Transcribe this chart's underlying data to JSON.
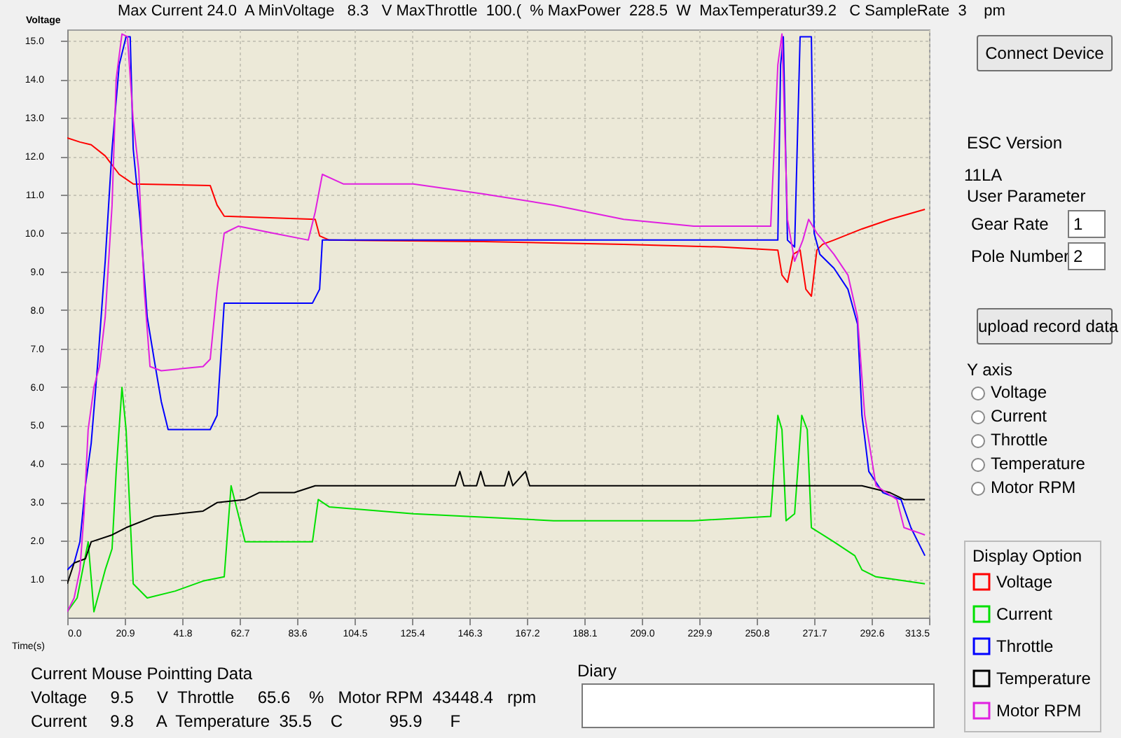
{
  "chart_data": {
    "type": "line",
    "xlabel": "Time(s)",
    "ylabel": "Voltage",
    "legend_title": "Display Option",
    "legend": "right",
    "grid": true,
    "marker": "none",
    "line_style": "solid",
    "xlim": [
      0,
      313.5
    ],
    "xticks": [
      {
        "value": 0,
        "label": "0.0"
      },
      20.9,
      41.8,
      62.7,
      83.6,
      104.5,
      125.4,
      146.3,
      167.2,
      188.1,
      {
        "value": 209,
        "label": "209.0"
      },
      229.9,
      250.8,
      271.7,
      292.6,
      313.5
    ],
    "ylim": [
      0,
      15.3
    ],
    "yticks": [
      {
        "value": 1,
        "label": "1.0"
      },
      {
        "value": 2,
        "label": "2.0"
      },
      {
        "value": 3,
        "label": "3.0"
      },
      {
        "value": 4,
        "label": "4.0"
      },
      {
        "value": 5,
        "label": "5.0"
      },
      {
        "value": 6,
        "label": "6.0"
      },
      {
        "value": 7,
        "label": "7.0"
      },
      {
        "value": 8,
        "label": "8.0"
      },
      {
        "value": 9,
        "label": "9.0"
      },
      {
        "value": 10,
        "label": "10.0"
      },
      {
        "value": 11,
        "label": "11.0"
      },
      {
        "value": 12,
        "label": "12.0"
      },
      {
        "value": 13,
        "label": "13.0"
      },
      {
        "value": 14,
        "label": "14.0"
      },
      {
        "value": 15,
        "label": "15.0"
      }
    ],
    "series": [
      {
        "name": "Voltage",
        "color": "#ff0000",
        "x": [
          0,
          4.6,
          8.7,
          13.8,
          18.9,
          24.0,
          52.0,
          54.5,
          57.1,
          90.2,
          91.8,
          95.3,
          151.4,
          202.4,
          238.1,
          258.5,
          260.0,
          262.0,
          264.1,
          266.6,
          268.7,
          270.7,
          272.7,
          274.8,
          278.9,
          289.1,
          299.3,
          312.0
        ],
        "values": [
          12.48,
          12.37,
          12.3,
          12.01,
          11.53,
          11.28,
          11.24,
          10.73,
          10.44,
          10.36,
          9.93,
          9.82,
          9.78,
          9.71,
          9.64,
          9.56,
          8.91,
          8.72,
          9.45,
          9.56,
          8.54,
          8.36,
          9.56,
          9.71,
          9.82,
          10.11,
          10.36,
          10.62
        ]
      },
      {
        "name": "Current",
        "color": "#00e000",
        "x": [
          0,
          3.6,
          7.6,
          9.7,
          13.8,
          16.3,
          17.8,
          19.9,
          21.4,
          24.0,
          29.1,
          39.3,
          49.4,
          57.1,
          59.6,
          64.7,
          89.2,
          91.3,
          95.3,
          125.9,
          176.9,
          227.9,
          255.9,
          258.5,
          260.0,
          261.5,
          264.6,
          267.2,
          269.2,
          270.7,
          278.9,
          286.5,
          289.1,
          294.2,
          312.0
        ],
        "values": [
          0.15,
          0.51,
          1.97,
          0.15,
          1.24,
          1.79,
          3.8,
          5.99,
          4.89,
          0.88,
          0.51,
          0.69,
          0.95,
          1.06,
          3.43,
          1.97,
          1.97,
          3.07,
          2.88,
          2.7,
          2.52,
          2.52,
          2.63,
          5.26,
          4.89,
          2.52,
          2.7,
          5.26,
          4.89,
          2.34,
          1.97,
          1.61,
          1.24,
          1.06,
          0.88
        ]
      },
      {
        "name": "Throttle",
        "color": "#0000ff",
        "x": [
          0,
          2.5,
          4.6,
          6.6,
          8.7,
          11.2,
          13.8,
          16.3,
          18.9,
          21.4,
          22.9,
          24.0,
          26.5,
          29.1,
          31.6,
          34.2,
          36.7,
          52.0,
          54.5,
          57.1,
          89.2,
          91.8,
          92.8,
          258.5,
          259.5,
          260.5,
          262.0,
          264.6,
          266.6,
          270.7,
          271.7,
          273.8,
          278.9,
          284.0,
          287.5,
          289.1,
          291.6,
          296.7,
          303.3,
          306.9,
          312.0
        ],
        "values": [
          1.24,
          1.42,
          1.97,
          3.43,
          4.53,
          6.72,
          9.27,
          12.19,
          14.38,
          15.11,
          15.11,
          12.19,
          10.36,
          7.81,
          6.72,
          5.62,
          4.89,
          4.89,
          5.26,
          8.18,
          8.18,
          8.54,
          9.82,
          9.82,
          14.38,
          15.11,
          9.82,
          9.64,
          15.11,
          15.11,
          10.0,
          9.45,
          9.09,
          8.54,
          7.63,
          5.26,
          3.8,
          3.25,
          3.07,
          2.34,
          1.61
        ]
      },
      {
        "name": "Temperature",
        "color": "#000000",
        "x": [
          0,
          2.5,
          6.6,
          8.7,
          16.3,
          21.4,
          31.6,
          49.4,
          54.5,
          64.7,
          69.8,
          82.6,
          90.2,
          141.2,
          142.8,
          144.3,
          148.9,
          150.4,
          151.9,
          159.1,
          160.6,
          162.1,
          166.7,
          168.2,
          255.9,
          289.1,
          299.3,
          304.4,
          312.0
        ],
        "values": [
          0.88,
          1.42,
          1.53,
          1.97,
          2.15,
          2.34,
          2.63,
          2.77,
          2.99,
          3.07,
          3.25,
          3.25,
          3.43,
          3.43,
          3.8,
          3.43,
          3.43,
          3.8,
          3.43,
          3.43,
          3.8,
          3.43,
          3.8,
          3.43,
          3.43,
          3.43,
          3.25,
          3.07,
          3.07
        ]
      },
      {
        "name": "Motor RPM",
        "color": "#e020e0",
        "x": [
          0,
          2.5,
          4.6,
          6.1,
          7.6,
          9.7,
          11.7,
          13.8,
          16.3,
          17.8,
          19.9,
          21.9,
          24.0,
          26.0,
          28.0,
          30.1,
          34.2,
          49.4,
          52.0,
          54.5,
          57.1,
          62.2,
          74.9,
          87.7,
          90.2,
          92.8,
          100.4,
          125.9,
          151.4,
          176.9,
          202.4,
          227.9,
          255.9,
          258.5,
          260.0,
          262.0,
          264.6,
          267.6,
          269.7,
          272.7,
          278.9,
          284.0,
          287.5,
          290.1,
          294.2,
          301.8,
          304.4,
          312.0
        ],
        "values": [
          0.15,
          0.51,
          1.24,
          2.7,
          4.89,
          5.99,
          6.53,
          7.81,
          10.73,
          14.01,
          15.18,
          15.11,
          12.92,
          11.64,
          8.54,
          6.53,
          6.42,
          6.53,
          6.72,
          8.54,
          10.0,
          10.18,
          10.0,
          9.82,
          10.55,
          11.53,
          11.28,
          11.28,
          11.02,
          10.73,
          10.36,
          10.18,
          10.18,
          14.38,
          15.18,
          10.36,
          9.27,
          9.82,
          10.36,
          10.0,
          9.45,
          8.91,
          7.81,
          5.26,
          3.43,
          3.07,
          2.34,
          2.15
        ]
      }
    ],
    "annotations": [
      "Max Current 24.0  A MinVoltage   8.3   V MaxThrottle  100.(  % MaxPower  228.5  W  MaxTemperatur39.2   C SampleRate  3    pm",
      "Connect Device",
      "ESC Version",
      "11LA",
      "User Parameter",
      "Gear Rate",
      "1",
      "Pole Number",
      "2",
      "upload record data",
      "Y axis",
      "Voltage",
      "Current",
      "Throttle",
      "Temperature",
      "Motor RPM",
      "Current Mouse Pointting Data",
      "Voltage     9.5     V  Throttle     65.6    %   Motor RPM  43448.4   rpm",
      "Current     9.8     A  Temperature  35.5    C          95.9      F",
      "Diary"
    ]
  }
}
